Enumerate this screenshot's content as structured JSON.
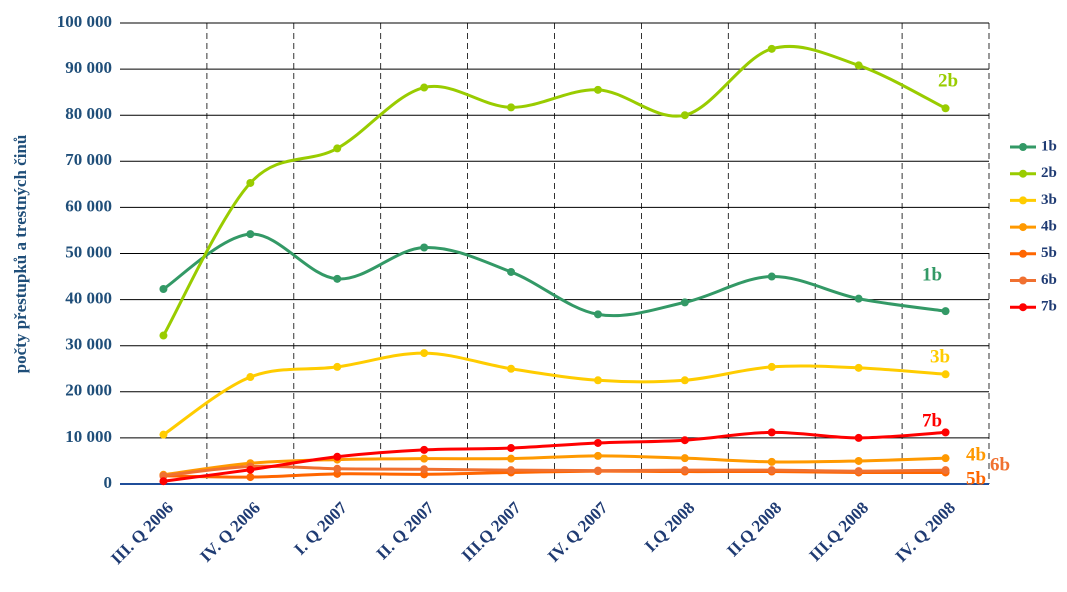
{
  "chart_data": {
    "type": "line",
    "y_label": "počty přestupků a trestných činů",
    "categories": [
      "III. Q 2006",
      "IV. Q 2006",
      "I. Q 2007",
      "II. Q 2007",
      "III.Q 2007",
      "IV. Q 2007",
      "I.Q 2008",
      "II.Q 2008",
      "III.Q 2008",
      "IV. Q 2008"
    ],
    "series": [
      {
        "name": "1b",
        "color": "#339966",
        "values": [
          42300,
          54200,
          44500,
          51300,
          46000,
          36800,
          39400,
          45000,
          40200,
          37500
        ]
      },
      {
        "name": "2b",
        "color": "#99cc00",
        "values": [
          32200,
          65300,
          72800,
          86000,
          81700,
          85500,
          80000,
          94400,
          90800,
          81500
        ]
      },
      {
        "name": "3b",
        "color": "#ffcc00",
        "values": [
          10700,
          23200,
          25400,
          28400,
          25000,
          22500,
          22500,
          25400,
          25200,
          23800
        ]
      },
      {
        "name": "4b",
        "color": "#ff9900",
        "values": [
          2000,
          4500,
          5300,
          5500,
          5500,
          6100,
          5600,
          4800,
          5000,
          5600
        ]
      },
      {
        "name": "5b",
        "color": "#ff6600",
        "values": [
          1800,
          1500,
          2200,
          2100,
          2500,
          2800,
          2700,
          2700,
          2500,
          2500
        ]
      },
      {
        "name": "6b",
        "color": "#f07030",
        "values": [
          1800,
          3800,
          3300,
          3200,
          3000,
          2900,
          3000,
          3000,
          2800,
          3000
        ]
      },
      {
        "name": "7b",
        "color": "#ff0000",
        "values": [
          600,
          3100,
          5900,
          7400,
          7800,
          8900,
          9500,
          11200,
          10000,
          11200
        ]
      }
    ],
    "ylim": [
      0,
      100000
    ],
    "yticks": [
      0,
      {
        "value": 10000,
        "label": "10 000"
      },
      {
        "value": 20000,
        "label": "20 000"
      },
      {
        "value": 30000,
        "label": "30 000"
      },
      {
        "value": 40000,
        "label": "40 000"
      },
      {
        "value": 50000,
        "label": "50 000"
      },
      {
        "value": 60000,
        "label": "60 000"
      },
      {
        "value": 70000,
        "label": "70 000"
      },
      {
        "value": 80000,
        "label": "80 000"
      },
      {
        "value": 90000,
        "label": "90 000"
      },
      {
        "value": 100000,
        "label": "100 000"
      }
    ],
    "grid": true,
    "legend": "right"
  }
}
